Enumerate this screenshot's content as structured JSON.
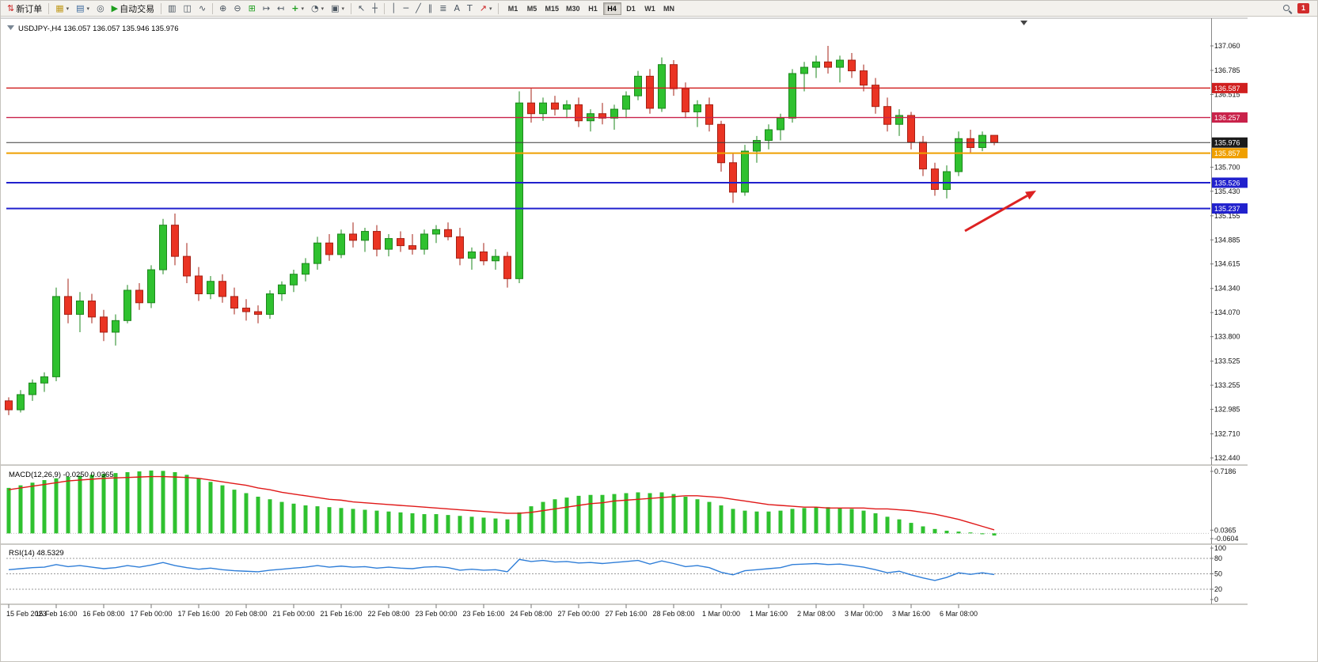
{
  "window": {
    "badge_count": "1"
  },
  "toolbar": {
    "new_order": "新订单",
    "autotrading": "自动交易",
    "timeframes": [
      "M1",
      "M5",
      "M15",
      "M30",
      "H1",
      "H4",
      "D1",
      "W1",
      "MN"
    ],
    "active_timeframe": "H4"
  },
  "icons": {
    "new_order": "⇅",
    "new_chart": "▦",
    "profiles": "▤",
    "alerts": "◎",
    "autotrading": "▶",
    "caret": "▾",
    "bars": "▥",
    "candles": "◫",
    "line_chart": "∿",
    "zoom_in": "⊕",
    "zoom_out": "⊖",
    "tile_windows": "⊞",
    "auto_scroll": "↦",
    "chart_shift": "↤",
    "indicators": "+",
    "periods": "◔",
    "templates": "▣",
    "cursor": "↖",
    "crosshair": "┼",
    "vertical_line": "│",
    "horizontal_line": "─",
    "trendline": "╱",
    "channel": "∥",
    "fibonacci": "≣",
    "text_tool": "A",
    "text_label": "T",
    "arrows_tool": "↗"
  },
  "colors": {
    "up": "#2fc12f",
    "up_border": "#1d871d",
    "down": "#ea3423",
    "down_border": "#a52014",
    "macd_hist": "#2fc12f",
    "macd_signal": "#e01818",
    "rsi_line": "#2f7ed8",
    "arrow": "#dd2222"
  },
  "chart": {
    "title": "USDJPY-,H4  136.057 136.057 135.946 135.976",
    "symbol_period": "USDJPY-,H4",
    "price_axis_labels": [
      "137.060",
      "136.785",
      "136.515",
      "135.700",
      "135.430",
      "135.155",
      "134.885",
      "134.615",
      "134.340",
      "134.070",
      "133.800",
      "133.525",
      "133.255",
      "132.985",
      "132.710",
      "132.440"
    ],
    "levels": [
      {
        "price": 136.587,
        "label": "136.587",
        "color": "#d01f1f",
        "bg": "#d01f1f",
        "width": 1.4
      },
      {
        "price": 136.257,
        "label": "136.257",
        "color": "#c9224a",
        "bg": "#c9224a",
        "width": 1.4
      },
      {
        "price": 135.976,
        "label": "135.976",
        "color": "#3a3a3a",
        "bg": "#1b1b1b",
        "width": 1,
        "current": true
      },
      {
        "price": 135.857,
        "label": "135.857",
        "color": "#ef9f00",
        "bg": "#ef9f00",
        "width": 2
      },
      {
        "price": 135.526,
        "label": "135.526",
        "color": "#2121cd",
        "bg": "#2121cd",
        "width": 2
      },
      {
        "price": 135.237,
        "label": "135.237",
        "color": "#2121cd",
        "bg": "#2121cd",
        "width": 2
      }
    ],
    "time_labels": [
      "15 Feb 2023",
      "15 Feb 16:00",
      "16 Feb 08:00",
      "17 Feb 00:00",
      "17 Feb 16:00",
      "20 Feb 08:00",
      "21 Feb 00:00",
      "21 Feb 16:00",
      "22 Feb 08:00",
      "23 Feb 00:00",
      "23 Feb 16:00",
      "24 Feb 08:00",
      "27 Feb 00:00",
      "27 Feb 16:00",
      "28 Feb 08:00",
      "1 Mar 00:00",
      "1 Mar 16:00",
      "2 Mar 08:00",
      "3 Mar 00:00",
      "3 Mar 16:00",
      "6 Mar 08:00"
    ],
    "annotation_arrow": {
      "color": "#dd2222"
    }
  },
  "macd": {
    "label": "MACD(12,26,9) -0.0250 0.0365",
    "axis": [
      "0.7186",
      "0.0365",
      "-0.0604"
    ]
  },
  "rsi": {
    "label": "RSI(14) 48.5329",
    "axis": [
      "100",
      "80",
      "50",
      "20",
      "0"
    ]
  },
  "chart_data": {
    "type": "candlestick",
    "title": "USDJPY- H4",
    "symbol": "USDJPY-",
    "timeframe": "H4",
    "ohlc_current": [
      136.057,
      136.057,
      135.946,
      135.976
    ],
    "ylim": [
      132.44,
      137.06
    ],
    "candles": [
      [
        133.08,
        133.12,
        132.92,
        132.98
      ],
      [
        132.98,
        133.2,
        132.95,
        133.15
      ],
      [
        133.15,
        133.32,
        133.08,
        133.28
      ],
      [
        133.28,
        133.4,
        133.18,
        133.35
      ],
      [
        133.35,
        134.35,
        133.3,
        134.25
      ],
      [
        134.25,
        134.45,
        133.95,
        134.05
      ],
      [
        134.05,
        134.3,
        133.85,
        134.2
      ],
      [
        134.2,
        134.28,
        133.95,
        134.02
      ],
      [
        134.02,
        134.1,
        133.75,
        133.85
      ],
      [
        133.85,
        134.05,
        133.7,
        133.98
      ],
      [
        133.98,
        134.38,
        133.95,
        134.32
      ],
      [
        134.32,
        134.4,
        134.1,
        134.18
      ],
      [
        134.18,
        134.6,
        134.12,
        134.55
      ],
      [
        134.55,
        135.12,
        134.5,
        135.05
      ],
      [
        135.05,
        135.18,
        134.6,
        134.7
      ],
      [
        134.7,
        134.85,
        134.4,
        134.48
      ],
      [
        134.48,
        134.58,
        134.2,
        134.28
      ],
      [
        134.28,
        134.48,
        134.22,
        134.42
      ],
      [
        134.42,
        134.5,
        134.18,
        134.25
      ],
      [
        134.25,
        134.35,
        134.05,
        134.12
      ],
      [
        134.12,
        134.22,
        133.98,
        134.08
      ],
      [
        134.08,
        134.15,
        133.95,
        134.05
      ],
      [
        134.05,
        134.32,
        134.0,
        134.28
      ],
      [
        134.28,
        134.42,
        134.2,
        134.38
      ],
      [
        134.38,
        134.55,
        134.3,
        134.5
      ],
      [
        134.5,
        134.68,
        134.42,
        134.62
      ],
      [
        134.62,
        134.92,
        134.55,
        134.85
      ],
      [
        134.85,
        134.95,
        134.65,
        134.72
      ],
      [
        134.72,
        135.0,
        134.68,
        134.95
      ],
      [
        134.95,
        135.08,
        134.8,
        134.88
      ],
      [
        134.88,
        135.02,
        134.75,
        134.98
      ],
      [
        134.98,
        135.05,
        134.7,
        134.78
      ],
      [
        134.78,
        134.95,
        134.7,
        134.9
      ],
      [
        134.9,
        134.98,
        134.75,
        134.82
      ],
      [
        134.82,
        134.95,
        134.72,
        134.78
      ],
      [
        134.78,
        135.0,
        134.72,
        134.95
      ],
      [
        134.95,
        135.05,
        134.85,
        135.0
      ],
      [
        135.0,
        135.08,
        134.88,
        134.92
      ],
      [
        134.92,
        135.02,
        134.6,
        134.68
      ],
      [
        134.68,
        134.8,
        134.55,
        134.75
      ],
      [
        134.75,
        134.85,
        134.6,
        134.65
      ],
      [
        134.65,
        134.78,
        134.55,
        134.7
      ],
      [
        134.7,
        134.75,
        134.35,
        134.45
      ],
      [
        134.45,
        136.55,
        134.4,
        136.42
      ],
      [
        136.42,
        136.58,
        136.2,
        136.3
      ],
      [
        136.3,
        136.48,
        136.22,
        136.42
      ],
      [
        136.42,
        136.5,
        136.28,
        136.35
      ],
      [
        136.35,
        136.45,
        136.25,
        136.4
      ],
      [
        136.4,
        136.48,
        136.15,
        136.22
      ],
      [
        136.22,
        136.35,
        136.1,
        136.3
      ],
      [
        136.3,
        136.42,
        136.18,
        136.25
      ],
      [
        136.25,
        136.4,
        136.12,
        136.35
      ],
      [
        136.35,
        136.55,
        136.25,
        136.5
      ],
      [
        136.5,
        136.78,
        136.45,
        136.72
      ],
      [
        136.72,
        136.8,
        136.3,
        136.36
      ],
      [
        136.36,
        136.93,
        136.32,
        136.85
      ],
      [
        136.85,
        136.9,
        136.5,
        136.58
      ],
      [
        136.58,
        136.65,
        136.25,
        136.32
      ],
      [
        136.32,
        136.45,
        136.15,
        136.4
      ],
      [
        136.4,
        136.48,
        136.1,
        136.18
      ],
      [
        136.18,
        136.22,
        135.65,
        135.75
      ],
      [
        135.75,
        135.85,
        135.3,
        135.42
      ],
      [
        135.42,
        135.95,
        135.38,
        135.88
      ],
      [
        135.88,
        136.05,
        135.75,
        136.0
      ],
      [
        136.0,
        136.18,
        135.9,
        136.12
      ],
      [
        136.12,
        136.3,
        136.0,
        136.25
      ],
      [
        136.25,
        136.8,
        136.2,
        136.75
      ],
      [
        136.75,
        136.88,
        136.55,
        136.82
      ],
      [
        136.82,
        136.95,
        136.7,
        136.88
      ],
      [
        136.88,
        137.06,
        136.75,
        136.82
      ],
      [
        136.82,
        136.95,
        136.65,
        136.9
      ],
      [
        136.9,
        136.98,
        136.7,
        136.78
      ],
      [
        136.78,
        136.85,
        136.55,
        136.62
      ],
      [
        136.62,
        136.7,
        136.3,
        136.38
      ],
      [
        136.38,
        136.48,
        136.1,
        136.18
      ],
      [
        136.18,
        136.35,
        136.05,
        136.28
      ],
      [
        136.28,
        136.32,
        135.9,
        135.98
      ],
      [
        135.98,
        136.05,
        135.6,
        135.68
      ],
      [
        135.68,
        135.75,
        135.38,
        135.45
      ],
      [
        135.45,
        135.72,
        135.35,
        135.65
      ],
      [
        135.65,
        136.1,
        135.6,
        136.02
      ],
      [
        136.02,
        136.12,
        135.85,
        135.92
      ],
      [
        135.92,
        136.1,
        135.88,
        136.057
      ],
      [
        136.057,
        136.057,
        135.946,
        135.976
      ]
    ],
    "macd": {
      "params": "12,26,9",
      "current_macd": -0.025,
      "current_signal": 0.0365,
      "range": [
        -0.0604,
        0.7186
      ],
      "histogram": [
        0.52,
        0.55,
        0.58,
        0.61,
        0.63,
        0.65,
        0.66,
        0.67,
        0.68,
        0.69,
        0.7,
        0.71,
        0.72,
        0.715,
        0.7,
        0.67,
        0.63,
        0.59,
        0.55,
        0.5,
        0.46,
        0.42,
        0.39,
        0.36,
        0.34,
        0.32,
        0.31,
        0.3,
        0.29,
        0.28,
        0.27,
        0.26,
        0.25,
        0.24,
        0.23,
        0.22,
        0.22,
        0.21,
        0.2,
        0.19,
        0.18,
        0.17,
        0.16,
        0.24,
        0.31,
        0.36,
        0.39,
        0.41,
        0.43,
        0.44,
        0.44,
        0.45,
        0.46,
        0.47,
        0.46,
        0.47,
        0.45,
        0.42,
        0.39,
        0.36,
        0.32,
        0.28,
        0.26,
        0.25,
        0.25,
        0.26,
        0.28,
        0.29,
        0.3,
        0.3,
        0.29,
        0.28,
        0.26,
        0.23,
        0.19,
        0.16,
        0.12,
        0.08,
        0.05,
        0.03,
        0.02,
        0.01,
        -0.01,
        -0.025
      ],
      "signal": [
        0.5,
        0.52,
        0.54,
        0.56,
        0.58,
        0.6,
        0.61,
        0.62,
        0.63,
        0.635,
        0.64,
        0.645,
        0.65,
        0.65,
        0.645,
        0.64,
        0.63,
        0.61,
        0.59,
        0.57,
        0.55,
        0.52,
        0.5,
        0.47,
        0.45,
        0.43,
        0.41,
        0.39,
        0.38,
        0.36,
        0.35,
        0.34,
        0.33,
        0.32,
        0.31,
        0.3,
        0.29,
        0.28,
        0.27,
        0.26,
        0.25,
        0.24,
        0.23,
        0.23,
        0.24,
        0.26,
        0.28,
        0.3,
        0.32,
        0.34,
        0.35,
        0.37,
        0.38,
        0.39,
        0.4,
        0.41,
        0.42,
        0.43,
        0.43,
        0.42,
        0.41,
        0.39,
        0.37,
        0.35,
        0.33,
        0.32,
        0.31,
        0.3,
        0.3,
        0.29,
        0.29,
        0.29,
        0.29,
        0.28,
        0.28,
        0.27,
        0.26,
        0.24,
        0.22,
        0.19,
        0.16,
        0.12,
        0.08,
        0.04
      ]
    },
    "rsi": {
      "period": 14,
      "current": 48.5329,
      "levels": [
        80,
        50,
        20
      ],
      "range": [
        0,
        100
      ],
      "values": [
        58,
        60,
        62,
        63,
        68,
        64,
        66,
        63,
        60,
        62,
        66,
        63,
        67,
        72,
        66,
        62,
        59,
        61,
        58,
        56,
        55,
        54,
        57,
        59,
        61,
        63,
        66,
        63,
        65,
        63,
        64,
        61,
        63,
        61,
        60,
        63,
        64,
        62,
        57,
        59,
        57,
        58,
        54,
        78,
        74,
        76,
        73,
        74,
        71,
        72,
        70,
        72,
        74,
        76,
        69,
        75,
        70,
        64,
        66,
        62,
        53,
        48,
        56,
        58,
        60,
        62,
        68,
        69,
        70,
        68,
        69,
        66,
        63,
        58,
        52,
        55,
        48,
        42,
        37,
        43,
        52,
        49,
        52,
        48.5
      ]
    }
  }
}
